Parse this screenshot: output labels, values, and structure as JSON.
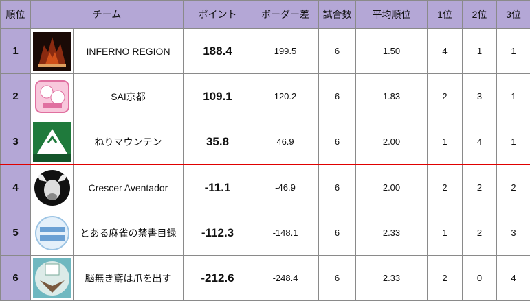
{
  "table": {
    "headers": [
      "順位",
      "チーム",
      "ポイント",
      "ボーダー差",
      "試合数",
      "平均順位",
      "1位",
      "2位",
      "3位"
    ],
    "rows": [
      [
        1,
        "INFERNO REGION",
        188.4,
        199.5,
        6,
        "1.50",
        4,
        1,
        1
      ],
      [
        2,
        "SAI京都",
        109.1,
        120.2,
        6,
        "1.83",
        2,
        3,
        1
      ],
      [
        3,
        "ねりマウンテン",
        35.8,
        46.9,
        6,
        "2.00",
        1,
        4,
        1
      ],
      [
        4,
        "Crescer Aventador",
        -11.1,
        -46.9,
        6,
        "2.00",
        2,
        2,
        2
      ],
      [
        5,
        "とある麻雀の禁書目録",
        -112.3,
        -148.1,
        6,
        "2.33",
        1,
        2,
        3
      ],
      [
        6,
        "脳無き鳶は爪を出す",
        -212.6,
        -248.4,
        6,
        "2.33",
        2,
        0,
        4
      ]
    ]
  }
}
